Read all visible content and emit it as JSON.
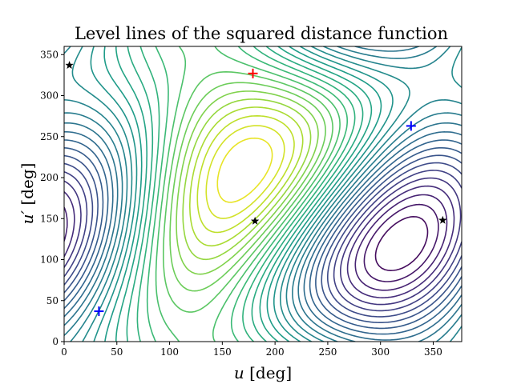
{
  "chart_data": {
    "type": "contour",
    "title": "Level lines of the squared distance function",
    "xlabel": {
      "var": "u",
      "unit": " [deg]"
    },
    "ylabel": {
      "var": "u′",
      "unit": " [deg]"
    },
    "xlim": [
      0,
      377
    ],
    "ylim": [
      0,
      360
    ],
    "xticks": [
      "0",
      "50",
      "100",
      "150",
      "200",
      "250",
      "300",
      "350"
    ],
    "yticks": [
      "0",
      "50",
      "100",
      "150",
      "200",
      "250",
      "300",
      "350"
    ],
    "xtick_values": [
      0,
      50,
      100,
      150,
      200,
      250,
      300,
      350
    ],
    "ytick_values": [
      0,
      50,
      100,
      150,
      200,
      250,
      300,
      350
    ],
    "colormap": "viridis",
    "grid": false,
    "colors": {
      "max_marker": "#ff0000",
      "min_marker": "#0000ff",
      "saddle_marker": "#000000"
    },
    "markers": [
      {
        "kind": "maximum",
        "symbol": "plus",
        "x": 179,
        "y": 327
      },
      {
        "kind": "minimum",
        "symbol": "plus",
        "x": 33,
        "y": 37
      },
      {
        "kind": "minimum",
        "symbol": "plus",
        "x": 329,
        "y": 263
      },
      {
        "kind": "saddle",
        "symbol": "star",
        "x": 5,
        "y": 337
      },
      {
        "kind": "saddle",
        "symbol": "star",
        "x": 181,
        "y": 147
      },
      {
        "kind": "saddle",
        "symbol": "star",
        "x": 359,
        "y": 148
      }
    ]
  }
}
